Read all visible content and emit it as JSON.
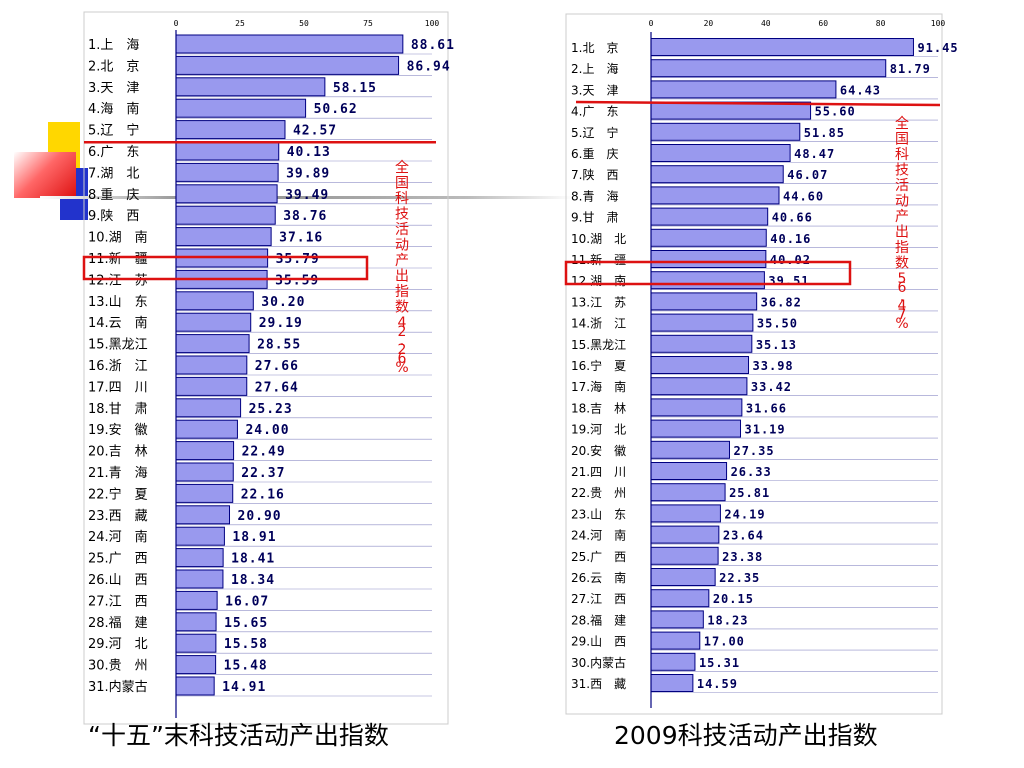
{
  "colors": {
    "bar_fill": "#9999ee",
    "bar_stroke": "#000080",
    "value_text": "#00005a",
    "highlight": "#dd1111",
    "deco_yellow": "#ffd700",
    "deco_blue": "#2233cc",
    "deco_red": "#ee2222"
  },
  "chart_data": [
    {
      "type": "bar",
      "orientation": "horizontal",
      "title": "“十五”末科技活动产出指数",
      "xlim": [
        0,
        100
      ],
      "ticks": [
        "0",
        "25",
        "50",
        "75",
        "100"
      ],
      "annotation": "全国科技活动产出指数42.26%",
      "highlight_index": 10,
      "threshold_line_after": 5,
      "categories": [
        "1.上　海",
        "2.北　京",
        "3.天　津",
        "4.海　南",
        "5.辽　宁",
        "6.广　东",
        "7.湖　北",
        "8.重　庆",
        "9.陕　西",
        "10.湖　南",
        "11.新　疆",
        "12.江　苏",
        "13.山　东",
        "14.云　南",
        "15.黑龙江",
        "16.浙　江",
        "17.四　川",
        "18.甘　肃",
        "19.安　徽",
        "20.吉　林",
        "21.青　海",
        "22.宁　夏",
        "23.西　藏",
        "24.河　南",
        "25.广　西",
        "26.山　西",
        "27.江　西",
        "28.福　建",
        "29.河　北",
        "30.贵　州",
        "31.内蒙古"
      ],
      "values": [
        88.61,
        86.94,
        58.15,
        50.62,
        42.57,
        40.13,
        39.89,
        39.49,
        38.76,
        37.16,
        35.79,
        35.59,
        30.2,
        29.19,
        28.55,
        27.66,
        27.64,
        25.23,
        24.0,
        22.49,
        22.37,
        22.16,
        20.9,
        18.91,
        18.41,
        18.34,
        16.07,
        15.65,
        15.58,
        15.48,
        14.91
      ],
      "value_labels": [
        "88.61",
        "86.94",
        "58.15",
        "50.62",
        "42.57",
        "40.13",
        "39.89",
        "39.49",
        "38.76",
        "37.16",
        "35.79",
        "35.59",
        "30.20",
        "29.19",
        "28.55",
        "27.66",
        "27.64",
        "25.23",
        "24.00",
        "22.49",
        "22.37",
        "22.16",
        "20.90",
        "18.91",
        "18.41",
        "18.34",
        "16.07",
        "15.65",
        "15.58",
        "15.48",
        "14.91"
      ]
    },
    {
      "type": "bar",
      "orientation": "horizontal",
      "title": "2009科技活动产出指数",
      "xlim": [
        0,
        100
      ],
      "ticks": [
        "0",
        "20",
        "40",
        "60",
        "80",
        "100"
      ],
      "annotation": "全国科技活动产出指数56.47%",
      "highlight_index": 10,
      "threshold_line_after": 3,
      "categories": [
        "1.北　京",
        "2.上　海",
        "3.天　津",
        "4.广　东",
        "5.辽　宁",
        "6.重　庆",
        "7.陕　西",
        "8.青　海",
        "9.甘　肃",
        "10.湖　北",
        "11.新　疆",
        "12.湖　南",
        "13.江　苏",
        "14.浙　江",
        "15.黑龙江",
        "16.宁　夏",
        "17.海　南",
        "18.吉　林",
        "19.河　北",
        "20.安　徽",
        "21.四　川",
        "22.贵　州",
        "23.山　东",
        "24.河　南",
        "25.广　西",
        "26.云　南",
        "27.江　西",
        "28.福　建",
        "29.山　西",
        "30.内蒙古",
        "31.西　藏"
      ],
      "values": [
        91.45,
        81.79,
        64.43,
        55.6,
        51.85,
        48.47,
        46.07,
        44.6,
        40.66,
        40.16,
        40.02,
        39.51,
        36.82,
        35.5,
        35.13,
        33.98,
        33.42,
        31.66,
        31.19,
        27.35,
        26.33,
        25.81,
        24.19,
        23.64,
        23.38,
        22.35,
        20.15,
        18.23,
        17.0,
        15.31,
        14.59
      ],
      "value_labels": [
        "91.45",
        "81.79",
        "64.43",
        "55.60",
        "51.85",
        "48.47",
        "46.07",
        "44.60",
        "40.66",
        "40.16",
        "40.02",
        "39.51",
        "36.82",
        "35.50",
        "35.13",
        "33.98",
        "33.42",
        "31.66",
        "31.19",
        "27.35",
        "26.33",
        "25.81",
        "24.19",
        "23.64",
        "23.38",
        "22.35",
        "20.15",
        "18.23",
        "17.00",
        "15.31",
        "14.59"
      ]
    }
  ]
}
